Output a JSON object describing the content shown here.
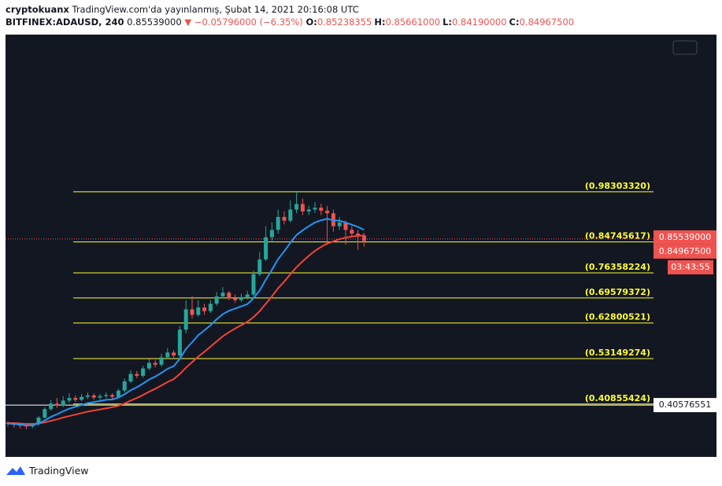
{
  "header": {
    "author": "cryptokuanx",
    "published": "TradingView.com'da yayınlanmış, Şubat 14, 2021 20:16:08 UTC",
    "symbol": "BITFINEX:ADAUSD, 240",
    "last": "0.85539000",
    "change": "▼ −0.05796000 (−6.35%)",
    "ohlc": [
      {
        "label": "O:",
        "value": "0.85238355"
      },
      {
        "label": "H:",
        "value": "0.85661000"
      },
      {
        "label": "L:",
        "value": "0.84190000"
      },
      {
        "label": "C:",
        "value": "0.84967500"
      }
    ]
  },
  "chart_data": {
    "type": "candlestick",
    "ylim": [
      0.2655,
      1.4086
    ],
    "up_color": "#26a69a",
    "down_color": "#ef5350",
    "open": [
      0.358,
      0.355,
      0.352,
      0.35,
      0.348,
      0.354,
      0.372,
      0.395,
      0.41,
      0.405,
      0.418,
      0.425,
      0.42,
      0.428,
      0.432,
      0.426,
      0.43,
      0.433,
      0.428,
      0.445,
      0.47,
      0.49,
      0.485,
      0.505,
      0.52,
      0.515,
      0.535,
      0.548,
      0.54,
      0.61,
      0.665,
      0.65,
      0.67,
      0.66,
      0.68,
      0.7,
      0.71,
      0.695,
      0.69,
      0.698,
      0.705,
      0.76,
      0.8,
      0.86,
      0.88,
      0.915,
      0.905,
      0.935,
      0.95,
      0.93,
      0.935,
      0.94,
      0.932,
      0.925,
      0.89,
      0.9,
      0.88,
      0.87,
      0.865
    ],
    "high": [
      0.362,
      0.358,
      0.355,
      0.353,
      0.357,
      0.376,
      0.4,
      0.42,
      0.425,
      0.43,
      0.438,
      0.432,
      0.436,
      0.44,
      0.437,
      0.436,
      0.44,
      0.438,
      0.45,
      0.478,
      0.5,
      0.498,
      0.512,
      0.53,
      0.528,
      0.545,
      0.56,
      0.555,
      0.62,
      0.69,
      0.7,
      0.69,
      0.68,
      0.69,
      0.712,
      0.725,
      0.715,
      0.705,
      0.708,
      0.715,
      0.77,
      0.82,
      0.89,
      0.9,
      0.935,
      0.93,
      0.96,
      0.983,
      0.965,
      0.945,
      0.955,
      0.95,
      0.945,
      0.935,
      0.915,
      0.905,
      0.89,
      0.88,
      0.872
    ],
    "low": [
      0.348,
      0.345,
      0.342,
      0.34,
      0.343,
      0.35,
      0.368,
      0.39,
      0.398,
      0.4,
      0.412,
      0.414,
      0.416,
      0.422,
      0.42,
      0.42,
      0.424,
      0.422,
      0.425,
      0.44,
      0.465,
      0.478,
      0.48,
      0.5,
      0.508,
      0.51,
      0.53,
      0.53,
      0.535,
      0.6,
      0.64,
      0.645,
      0.65,
      0.655,
      0.675,
      0.695,
      0.69,
      0.682,
      0.685,
      0.692,
      0.7,
      0.755,
      0.795,
      0.85,
      0.87,
      0.895,
      0.9,
      0.925,
      0.92,
      0.92,
      0.925,
      0.92,
      0.84,
      0.875,
      0.88,
      0.84,
      0.862,
      0.825,
      0.835
    ],
    "close": [
      0.355,
      0.352,
      0.35,
      0.348,
      0.354,
      0.372,
      0.395,
      0.41,
      0.405,
      0.418,
      0.425,
      0.42,
      0.428,
      0.432,
      0.426,
      0.43,
      0.433,
      0.428,
      0.445,
      0.47,
      0.49,
      0.485,
      0.505,
      0.52,
      0.515,
      0.535,
      0.548,
      0.54,
      0.61,
      0.665,
      0.65,
      0.67,
      0.66,
      0.68,
      0.7,
      0.71,
      0.695,
      0.69,
      0.698,
      0.705,
      0.76,
      0.8,
      0.86,
      0.88,
      0.915,
      0.905,
      0.935,
      0.95,
      0.93,
      0.935,
      0.94,
      0.932,
      0.925,
      0.89,
      0.9,
      0.88,
      0.87,
      0.865,
      0.85
    ],
    "lines": [
      {
        "color": "#f44336",
        "values": [
          0.357,
          0.357,
          0.356,
          0.355,
          0.355,
          0.356,
          0.359,
          0.363,
          0.367,
          0.372,
          0.376,
          0.38,
          0.384,
          0.388,
          0.391,
          0.394,
          0.397,
          0.4,
          0.404,
          0.41,
          0.418,
          0.425,
          0.433,
          0.442,
          0.45,
          0.459,
          0.468,
          0.476,
          0.49,
          0.507,
          0.522,
          0.537,
          0.55,
          0.564,
          0.578,
          0.592,
          0.603,
          0.613,
          0.622,
          0.631,
          0.644,
          0.66,
          0.68,
          0.7,
          0.722,
          0.74,
          0.76,
          0.779,
          0.795,
          0.81,
          0.823,
          0.834,
          0.843,
          0.849,
          0.855,
          0.859,
          0.862,
          0.864,
          0.865
        ]
      },
      {
        "color": "#2196f3",
        "values": [
          0.356,
          0.355,
          0.353,
          0.351,
          0.351,
          0.356,
          0.364,
          0.374,
          0.381,
          0.389,
          0.396,
          0.401,
          0.406,
          0.411,
          0.414,
          0.417,
          0.42,
          0.421,
          0.426,
          0.435,
          0.446,
          0.454,
          0.464,
          0.475,
          0.483,
          0.493,
          0.504,
          0.511,
          0.531,
          0.558,
          0.576,
          0.595,
          0.608,
          0.622,
          0.638,
          0.652,
          0.661,
          0.667,
          0.673,
          0.679,
          0.695,
          0.716,
          0.745,
          0.772,
          0.801,
          0.822,
          0.845,
          0.866,
          0.879,
          0.89,
          0.9,
          0.906,
          0.91,
          0.906,
          0.905,
          0.9,
          0.894,
          0.888,
          0.88
        ]
      }
    ],
    "fib_color": "#ffff33",
    "fib_levels": [
      {
        "value": 0.9830332,
        "label": "(0.98303320)"
      },
      {
        "value": 0.84745617,
        "label": "(0.84745617)"
      },
      {
        "value": 0.76358224,
        "label": "(0.76358224)"
      },
      {
        "value": 0.69579372,
        "label": "(0.69579372)"
      },
      {
        "value": 0.62800521,
        "label": "(0.62800521)"
      },
      {
        "value": 0.53149274,
        "label": "(0.53149274)"
      },
      {
        "value": 0.40855424,
        "label": "(0.40855424)"
      }
    ],
    "price_labels": [
      {
        "value": 0.85539,
        "label": "0.85539000",
        "color": "#ef5350"
      },
      {
        "value": 0.849675,
        "label": "0.84967500",
        "color": "#ef5350"
      },
      {
        "value": 0.40576551,
        "label": "0.40576551",
        "color": "#ffffff"
      }
    ],
    "countdown": "03:43:55"
  },
  "footer": {
    "brand": "TradingView"
  }
}
